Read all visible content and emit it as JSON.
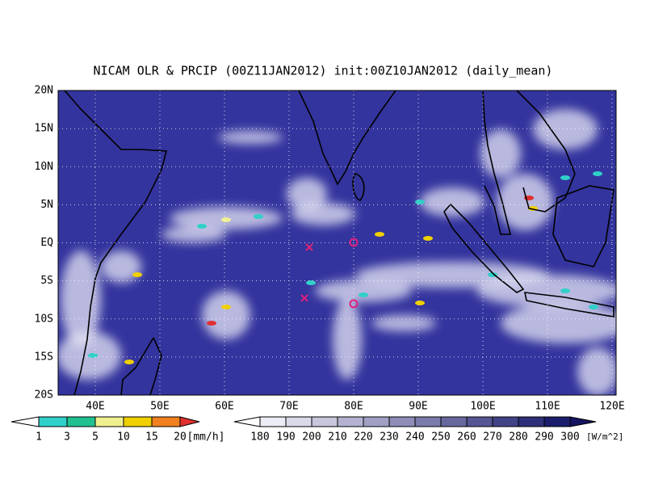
{
  "title": "NICAM OLR & PRCIP (00Z11JAN2012) init:00Z10JAN2012 (daily_mean)",
  "map": {
    "lon_labels": [
      "40E",
      "50E",
      "60E",
      "70E",
      "80E",
      "90E",
      "100E",
      "110E",
      "120E"
    ],
    "lat_labels": [
      "20N",
      "15N",
      "10N",
      "5N",
      "EQ",
      "5S",
      "10S",
      "15S",
      "20S"
    ]
  },
  "precip_colorbar": {
    "labels": [
      1,
      3,
      5,
      10,
      15,
      20
    ],
    "unit": "[mm/h]"
  },
  "olr_colorbar": {
    "labels": [
      180,
      190,
      200,
      210,
      220,
      230,
      240,
      250,
      260,
      270,
      280,
      290,
      300
    ],
    "unit": "[W/m^2]"
  }
}
